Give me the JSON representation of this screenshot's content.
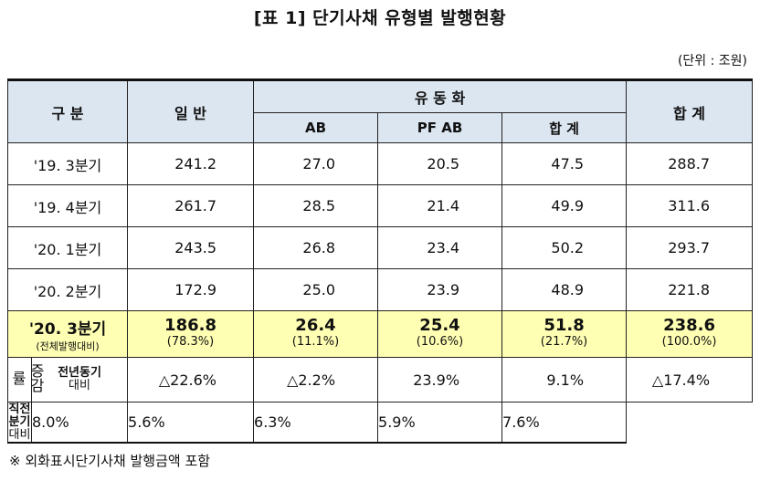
{
  "title": "[표 1] 단기사채 유형별 발행현황",
  "unit": "(단위 : 조원)",
  "header": {
    "category": "구  분",
    "general": "일 반",
    "liquidation": "유 동 화",
    "ab": "AB",
    "pfab": "PF AB",
    "subtotal": "합 계",
    "total": "합 계"
  },
  "rows": [
    {
      "label": "'19. 3분기",
      "general": "241.2",
      "ab": "27.0",
      "pfab": "20.5",
      "subtotal": "47.5",
      "total": "288.7"
    },
    {
      "label": "'19. 4분기",
      "general": "261.7",
      "ab": "28.5",
      "pfab": "21.4",
      "subtotal": "49.9",
      "total": "311.6"
    },
    {
      "label": "'20. 1분기",
      "general": "243.5",
      "ab": "26.8",
      "pfab": "23.4",
      "subtotal": "50.2",
      "total": "293.7"
    },
    {
      "label": "'20. 2분기",
      "general": "172.9",
      "ab": "25.0",
      "pfab": "23.9",
      "subtotal": "48.9",
      "total": "221.8"
    }
  ],
  "highlight": {
    "label": "'20. 3분기",
    "sublabel": "(전체발행대비)",
    "general": "186.8",
    "general_pct": "(78.3%)",
    "ab": "26.4",
    "ab_pct": "(11.1%)",
    "pfab": "25.4",
    "pfab_pct": "(10.6%)",
    "subtotal": "51.8",
    "subtotal_pct": "(21.7%)",
    "total": "238.6",
    "total_pct": "(100.0%)"
  },
  "change": {
    "label": "증감률",
    "yoy": {
      "label1": "전년동기",
      "label2": "대비",
      "general": "△22.6%",
      "ab": "△2.2%",
      "pfab": "23.9%",
      "subtotal": "9.1%",
      "total": "△17.4%"
    },
    "qoq": {
      "label1": "직전분기",
      "label2": "대비",
      "general": "8.0%",
      "ab": "5.6%",
      "pfab": "6.3%",
      "subtotal": "5.9%",
      "total": "7.6%"
    }
  },
  "footnote": "※ 외화표시단기사채 발행금액 포함"
}
